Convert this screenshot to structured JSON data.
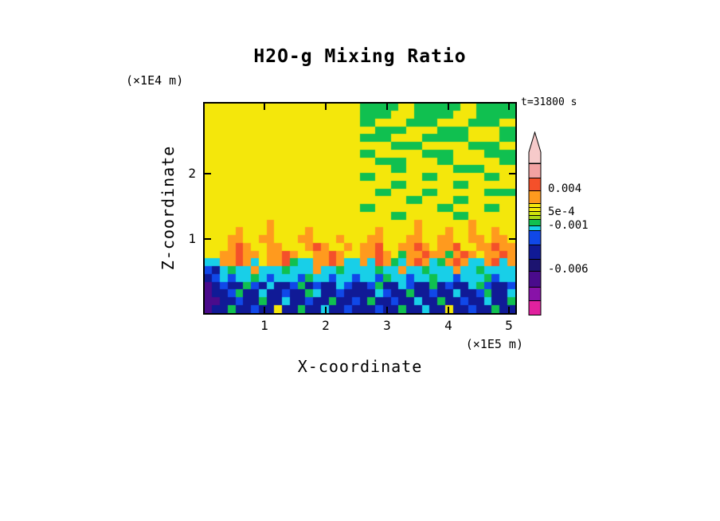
{
  "title": "H2O-g Mixing Ratio",
  "timestamp": "t=31800 s",
  "axes": {
    "x_label": "X-coordinate",
    "x_unit": "(×1E5 m)",
    "x_ticks": [
      "1",
      "2",
      "3",
      "4",
      "5"
    ],
    "y_label": "Z-coordinate",
    "y_unit": "(×1E4 m)",
    "y_ticks": [
      "2",
      "1"
    ]
  },
  "colorbar": {
    "labels": [
      "0.004",
      "5e-4",
      "-0.001",
      "-0.006"
    ],
    "arrow_color": "#f6caca",
    "segments": [
      {
        "color": "#f2a2a2",
        "h": 18
      },
      {
        "color": "#f4502a",
        "h": 16
      },
      {
        "color": "#ff9a1e",
        "h": 16
      },
      {
        "color": "#f4e70b",
        "h": 5
      },
      {
        "color": "#f4e70b",
        "h": 5
      },
      {
        "color": "#cde20c",
        "h": 5
      },
      {
        "color": "#a8d816",
        "h": 5
      },
      {
        "color": "#10c050",
        "h": 8
      },
      {
        "color": "#18cfe8",
        "h": 6
      },
      {
        "color": "#1048e8",
        "h": 18
      },
      {
        "color": "#101a96",
        "h": 18
      },
      {
        "color": "#1c1470",
        "h": 15
      },
      {
        "color": "#4a0b8c",
        "h": 20
      },
      {
        "color": "#8812a8",
        "h": 17
      },
      {
        "color": "#e0219e",
        "h": 18
      }
    ]
  },
  "chart_data": {
    "type": "heatmap",
    "title": "H2O-g Mixing Ratio",
    "xlabel": "X-coordinate (×1E5 m)",
    "ylabel": "Z-coordinate (×1E4 m)",
    "x_range": [
      0,
      5.15
    ],
    "y_range": [
      0,
      2.75
    ],
    "time": "t=31800 s",
    "colorbar_levels": [
      0.004,
      0.0005,
      -0.001,
      -0.006
    ],
    "palette": {
      "Y": "#f4e70b",
      "G": "#10c050",
      "C": "#18cfe8",
      "B": "#1048e8",
      "N": "#101a96",
      "P": "#4a0b8c",
      "O": "#ff9a1e",
      "R": "#f4502a"
    },
    "grid_rows_top_to_bottom": [
      "YYYYYYYYYYYYYYYYYYYYGGGGGYYGGGGGGYYGGGGG",
      "YYYYYYYYYYYYYYYYYYYYGGGGYYYGGGGGYYYGGGGG",
      "YYYYYYYYYYYYYYYYYYYYGGYYYYGGGGYYYYGGGGYY",
      "YYYYYYYYYYYYYYYYYYYYYYGGGGYYYYGGGGYYYYGG",
      "YYYYYYYYYYYYYYYYYYYYGGGGYYYYGGGGGGYYYYGG",
      "YYYYYYYYYYYYYYYYYYYYYYYYGGGGYYYYYYGGGGYY",
      "YYYYYYYYYYYYYYYYYYYYGGYYYYYYGGGGYYYYGGGG",
      "YYYYYYYYYYYYYYYYYYYYYYGGGGYYYYGGYYYYYYGG",
      "YYYYYYYYYYYYYYYYYYYYYYYYGGYYYYYYGGGGYYYY",
      "YYYYYYYYYYYYYYYYYYYYGGYYYYYYGGYYYYYYGGYY",
      "YYYYYYYYYYYYYYYYYYYYYYYYGGYYYYYYGGYYYYYY",
      "YYYYYYYYYYYYYYYYYYYYYYGGYYYYGGYYYYYYGGGG",
      "YYYYYYYYYYYYYYYYYYYYYYYYYYGGYYYYGGYYYYYY",
      "YYYYYYYYYYYYYYYYYYYYGGYYYYYYYYGGYYYYGGYY",
      "YYYYYYYYYYYYYYYYYYYYYYYYGGYYYYYYGGYYYYYY",
      "YYYYYYYYOYYYYYYYYYYYYYYYYYYOYYYYYYOYYYYY",
      "YYYYOYYYOYYYYOYYYYYYYYOYYYYOYYYOYYOYYOYY",
      "YYYOOYYOOYYYOOYYYOYYYOOYYYOOYYOOYYOOYOOY",
      "YYYOROYYOOYYYOROYYOYOORYYOOROYOORYYOOROO",
      "YYOOROOYOOROYYOOROYYOOROYGOOROOGOROYOORO",
      "CCOOROCYOORGCCOOROCCOCROGCOROCGOROCCORCO",
      "BNCGCCOCCCGCCCOCCGCCCCGCCOCCGCCCOCCGCCCC",
      "NBCBCCGCBCCCBGCCBCCBCCBGCCBCCGCCBCCCGBCC",
      "PNBNNGBNCNNBGNBNNCBNNBGNNCBNNGNBNNCGBNNB",
      "PNNBGNNCNNBNNGCNNBNNNNCBNNGNNBNNCNNBGNNC",
      "PPNNBNNGNNCNNBNNGNNBNGNNBNNCNNGNNBNNCNNG",
      "PNNGNNBNNYNNGNNCNNBNNNBNNGNNCNNYNNBNNGNN"
    ]
  }
}
